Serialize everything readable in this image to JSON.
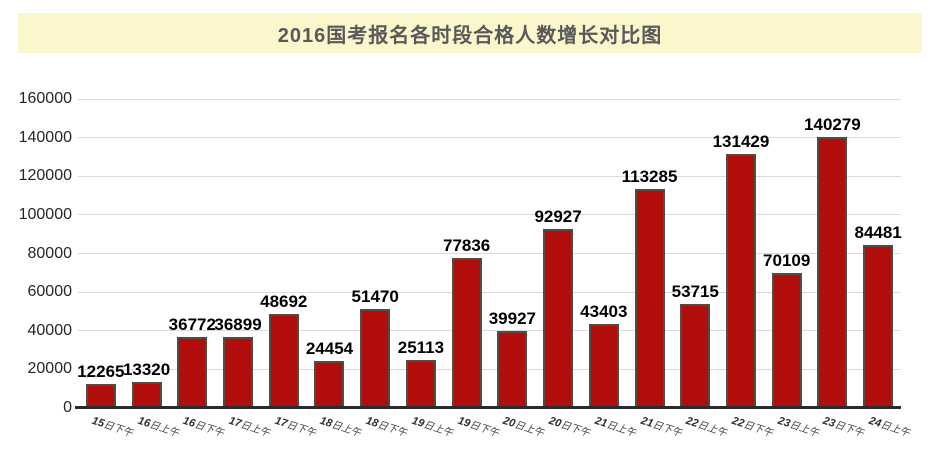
{
  "title": "2016国考报名各时段合格人数增长对比图",
  "colors": {
    "banner_bg": "#FCF6CD",
    "title_text": "#595959",
    "bar_fill": "#B10D0D",
    "bar_border": "#4F4F41",
    "gridline": "#DBDBDB",
    "axis_line": "#2B2B2B",
    "value_label": "#000000",
    "tick_label": "#262626"
  },
  "chart_data": {
    "type": "bar",
    "title": "2016国考报名各时段合格人数增长对比图",
    "categories": [
      "15日下午",
      "16日上午",
      "16日下午",
      "17日上午",
      "17日下午",
      "18日上午",
      "18日下午",
      "19日上午",
      "19日下午",
      "20日上午",
      "20日下午",
      "21日上午",
      "21日下午",
      "22日上午",
      "22日下午",
      "23日上午",
      "23日下午",
      "24日上午"
    ],
    "values": [
      12265,
      13320,
      36772,
      36899,
      48692,
      24454,
      51470,
      25113,
      77836,
      39927,
      92927,
      43403,
      113285,
      53715,
      131429,
      70109,
      140279,
      84481
    ],
    "xlabel": "",
    "ylabel": "",
    "ylim": [
      0,
      160000
    ],
    "yticks": [
      0,
      20000,
      40000,
      60000,
      80000,
      100000,
      120000,
      140000,
      160000
    ],
    "grid": true,
    "legend_position": "none",
    "value_labels_shown": true
  }
}
